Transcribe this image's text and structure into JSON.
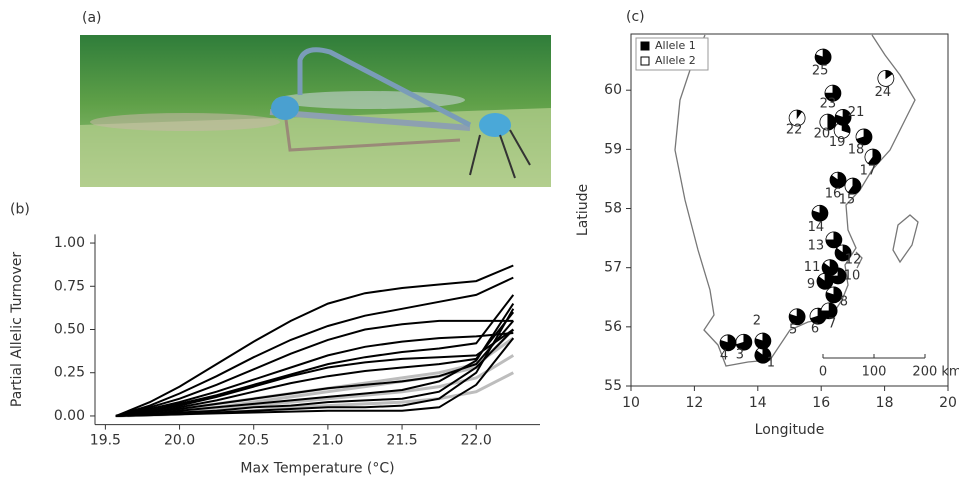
{
  "photo": {
    "panel_label": "(a)"
  },
  "chart_data": [
    {
      "type": "line",
      "panel_label": "(b)",
      "xlabel": "Max Temperature (°C)",
      "ylabel": "Partial Allelic Turnover",
      "x": [
        19.57,
        19.8,
        20.0,
        20.25,
        20.5,
        20.75,
        21.0,
        21.25,
        21.5,
        21.75,
        22.0,
        22.25
      ],
      "xlim": [
        19.43,
        22.43
      ],
      "xticks": [
        19.5,
        {
          "value": 20,
          "label": "20.0"
        },
        20.5,
        {
          "value": 21,
          "label": "21.0"
        },
        21.5,
        {
          "value": 22,
          "label": "22.0"
        }
      ],
      "ylim": [
        -0.05,
        1.05
      ],
      "yticks": [
        {
          "value": 0,
          "label": "0.00"
        },
        {
          "value": 0.25,
          "label": "0.25"
        },
        {
          "value": 0.5,
          "label": "0.50"
        },
        {
          "value": 0.75,
          "label": "0.75"
        },
        {
          "value": 1,
          "label": "1.00"
        }
      ],
      "series": [
        {
          "color": "#bdbdbd",
          "values": [
            0,
            0.02,
            0.04,
            0.07,
            0.1,
            0.13,
            0.16,
            0.19,
            0.22,
            0.25,
            0.3,
            0.45
          ]
        },
        {
          "color": "#bdbdbd",
          "values": [
            0,
            0.01,
            0.02,
            0.04,
            0.06,
            0.08,
            0.1,
            0.12,
            0.14,
            0.17,
            0.22,
            0.35
          ]
        },
        {
          "color": "#bdbdbd",
          "values": [
            0,
            0.005,
            0.01,
            0.02,
            0.03,
            0.05,
            0.06,
            0.07,
            0.08,
            0.1,
            0.14,
            0.25
          ]
        },
        {
          "color": "#bdbdbd",
          "values": [
            0,
            0.015,
            0.03,
            0.05,
            0.08,
            0.11,
            0.14,
            0.17,
            0.2,
            0.23,
            0.28,
            0.5
          ]
        },
        {
          "color": "#000000",
          "values": [
            0,
            0.08,
            0.17,
            0.3,
            0.43,
            0.55,
            0.65,
            0.71,
            0.74,
            0.76,
            0.78,
            0.87
          ]
        },
        {
          "color": "#000000",
          "values": [
            0,
            0.06,
            0.13,
            0.23,
            0.34,
            0.44,
            0.52,
            0.58,
            0.62,
            0.66,
            0.7,
            0.8
          ]
        },
        {
          "color": "#000000",
          "values": [
            0,
            0.05,
            0.1,
            0.18,
            0.27,
            0.36,
            0.44,
            0.5,
            0.53,
            0.55,
            0.55,
            0.55
          ]
        },
        {
          "color": "#000000",
          "values": [
            0,
            0.04,
            0.08,
            0.14,
            0.21,
            0.28,
            0.35,
            0.4,
            0.43,
            0.45,
            0.46,
            0.48
          ]
        },
        {
          "color": "#000000",
          "values": [
            0,
            0.03,
            0.06,
            0.11,
            0.17,
            0.23,
            0.28,
            0.31,
            0.33,
            0.34,
            0.35,
            0.5
          ]
        },
        {
          "color": "#000000",
          "values": [
            0,
            0.02,
            0.05,
            0.09,
            0.14,
            0.19,
            0.23,
            0.26,
            0.28,
            0.3,
            0.33,
            0.6
          ]
        },
        {
          "color": "#000000",
          "values": [
            0,
            0.02,
            0.04,
            0.07,
            0.1,
            0.13,
            0.16,
            0.18,
            0.2,
            0.23,
            0.3,
            0.55
          ]
        },
        {
          "color": "#000000",
          "values": [
            0,
            0.01,
            0.03,
            0.05,
            0.07,
            0.09,
            0.11,
            0.13,
            0.15,
            0.2,
            0.32,
            0.65
          ]
        },
        {
          "color": "#000000",
          "values": [
            0,
            0.01,
            0.02,
            0.03,
            0.05,
            0.06,
            0.08,
            0.09,
            0.1,
            0.14,
            0.28,
            0.5
          ]
        },
        {
          "color": "#000000",
          "values": [
            0,
            0.005,
            0.01,
            0.02,
            0.03,
            0.04,
            0.05,
            0.05,
            0.06,
            0.1,
            0.25,
            0.62
          ]
        },
        {
          "color": "#000000",
          "values": [
            0,
            0.005,
            0.01,
            0.015,
            0.02,
            0.025,
            0.03,
            0.03,
            0.03,
            0.05,
            0.18,
            0.45
          ]
        },
        {
          "color": "#000000",
          "values": [
            0,
            0.03,
            0.07,
            0.12,
            0.18,
            0.24,
            0.3,
            0.34,
            0.37,
            0.39,
            0.42,
            0.7
          ]
        }
      ]
    },
    {
      "type": "scatter",
      "panel_label": "(c)",
      "xlabel": "Longitude",
      "ylabel": "Latiude",
      "xlim": [
        10,
        20
      ],
      "ylim": [
        55,
        60.95
      ],
      "xticks": [
        10,
        12,
        14,
        16,
        18,
        20
      ],
      "yticks": [
        55,
        56,
        57,
        58,
        59,
        60
      ],
      "point_labels": [
        "1",
        "2",
        "3",
        "4",
        "5",
        "6",
        "7",
        "8",
        "9",
        "10",
        "11",
        "12",
        "13",
        "14",
        "15",
        "16",
        "17",
        "18",
        "19",
        "20",
        "21",
        "22",
        "23",
        "24",
        "25"
      ],
      "x": [
        14.16,
        14.16,
        13.56,
        13.06,
        15.24,
        15.9,
        16.25,
        16.4,
        16.12,
        16.53,
        16.28,
        16.69,
        16.4,
        15.96,
        17.0,
        16.53,
        17.63,
        17.35,
        16.66,
        16.21,
        16.69,
        15.24,
        16.37,
        18.04,
        16.06
      ],
      "y": [
        55.52,
        55.76,
        55.74,
        55.73,
        56.17,
        56.18,
        56.27,
        56.54,
        56.77,
        56.86,
        57.0,
        57.25,
        57.47,
        57.92,
        58.38,
        58.48,
        58.87,
        59.21,
        59.32,
        59.46,
        59.54,
        59.53,
        59.95,
        60.2,
        60.56
      ],
      "series": [
        {
          "name": "Allele 1",
          "color": "#000000",
          "values": [
            0.85,
            0.8,
            0.7,
            0.8,
            0.8,
            0.7,
            0.75,
            0.8,
            0.85,
            0.75,
            0.85,
            0.85,
            0.75,
            0.8,
            0.6,
            0.85,
            0.6,
            0.7,
            0.3,
            0.5,
            0.8,
            0.1,
            0.75,
            0.15,
            0.8
          ]
        },
        {
          "name": "Allele 2",
          "color": "#ffffff",
          "values": [
            0.15,
            0.2,
            0.3,
            0.2,
            0.2,
            0.3,
            0.25,
            0.2,
            0.15,
            0.25,
            0.15,
            0.15,
            0.25,
            0.2,
            0.4,
            0.15,
            0.4,
            0.3,
            0.7,
            0.5,
            0.2,
            0.9,
            0.25,
            0.85,
            0.2
          ]
        }
      ],
      "legend": "upper left",
      "scale_bar_labels": [
        "0",
        "100",
        "200 km"
      ]
    }
  ]
}
